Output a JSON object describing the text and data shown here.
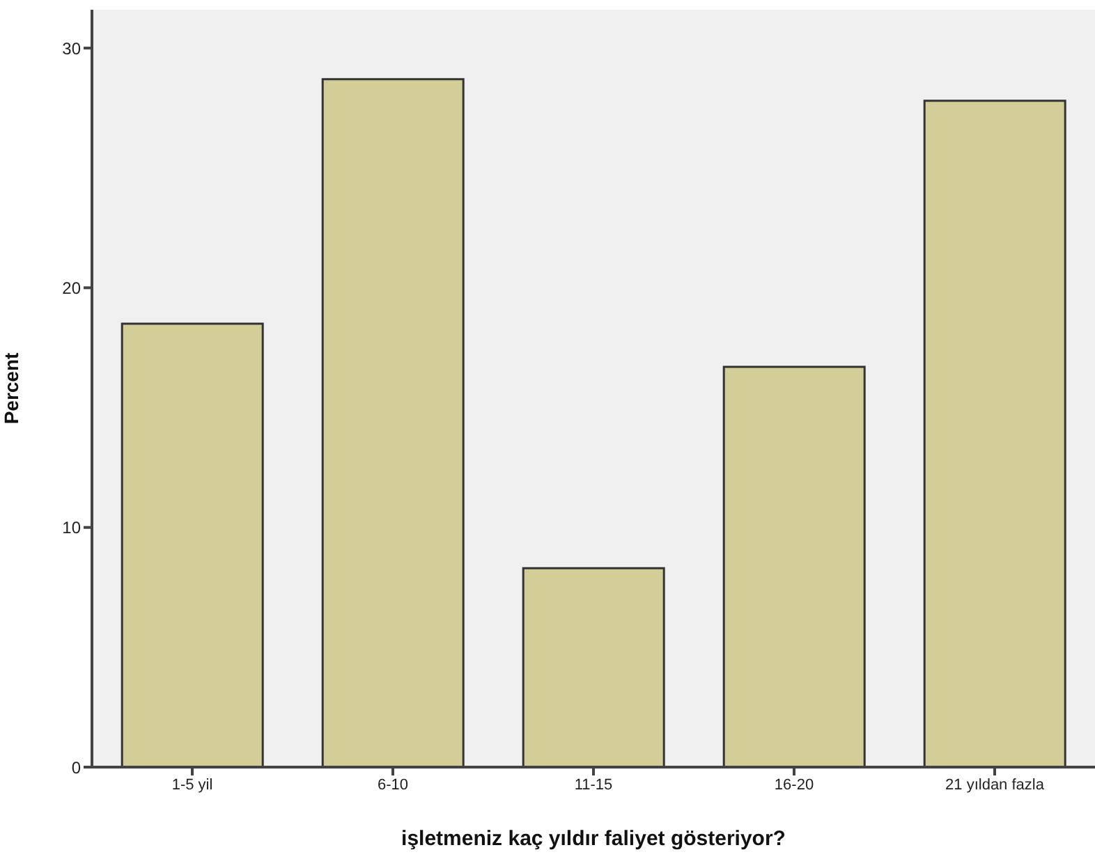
{
  "chart_data": {
    "type": "bar",
    "xlabel": "işletmeniz kaç yıldır faliyet gösteriyor?",
    "ylabel": "Percent",
    "categories": [
      "1-5 yil",
      "6-10",
      "11-15",
      "16-20",
      "21 yıldan fazla"
    ],
    "values": [
      18.5,
      28.7,
      8.3,
      16.7,
      27.8
    ],
    "color": "#d3ce98",
    "ylim": [
      0,
      31.6
    ],
    "yticks": [
      0,
      10,
      20,
      30
    ],
    "grid": false,
    "legend": false
  }
}
